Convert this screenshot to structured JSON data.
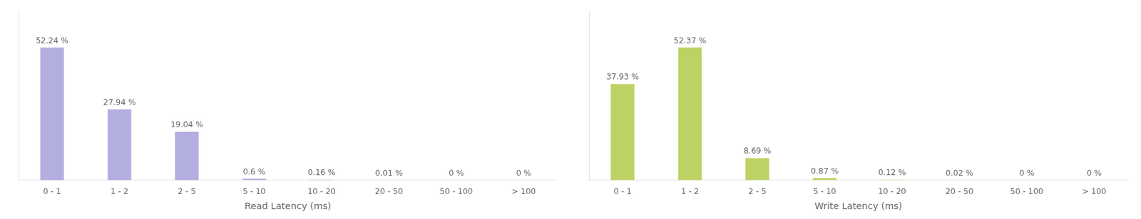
{
  "chart_data": [
    {
      "type": "bar",
      "categories": [
        "0 - 1",
        "1 - 2",
        "2 - 5",
        "5 - 10",
        "10 - 20",
        "20 - 50",
        "50 - 100",
        "> 100"
      ],
      "values": [
        52.24,
        27.94,
        19.04,
        0.6,
        0.16,
        0.01,
        0.0,
        0.0
      ],
      "value_labels": [
        "52.24 %",
        "27.94 %",
        "19.04 %",
        "0.6 %",
        "0.16 %",
        "0.01 %",
        "0 %",
        "0 %"
      ],
      "color": "#b3aee0",
      "xlabel": "Read Latency (ms)",
      "ylim": [
        0,
        66.8672
      ],
      "grid": false,
      "tick_labels": "x"
    },
    {
      "type": "bar",
      "categories": [
        "0 - 1",
        "1 - 2",
        "2 - 5",
        "5 - 10",
        "10 - 20",
        "20 - 50",
        "50 - 100",
        "> 100"
      ],
      "values": [
        37.93,
        52.37,
        8.69,
        0.87,
        0.12,
        0.02,
        0.0,
        0.0
      ],
      "value_labels": [
        "37.93 %",
        "52.37 %",
        "8.69 %",
        "0.87 %",
        "0.12 %",
        "0.02 %",
        "0 %",
        "0 %"
      ],
      "color": "#bcd264",
      "xlabel": "Write Latency (ms)",
      "ylim": [
        0,
        67.0336
      ],
      "grid": false,
      "tick_labels": "x"
    }
  ]
}
